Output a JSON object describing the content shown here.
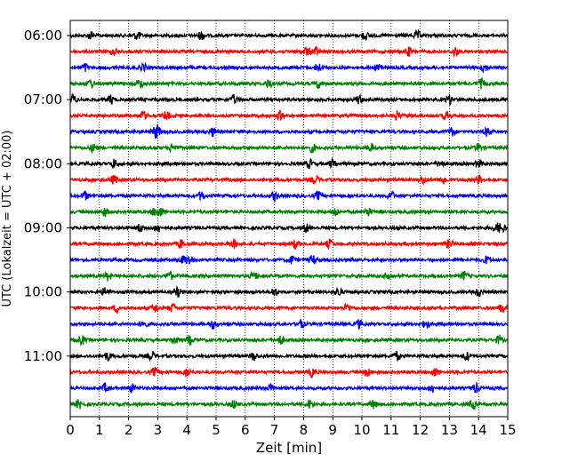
{
  "chart_data": {
    "type": "line",
    "xlabel": "Zeit  [min]",
    "ylabel": "UTC (Lokalzeit = UTC + 02:00)",
    "xlim": [
      0,
      15
    ],
    "x_ticks": [
      "0",
      "1",
      "2",
      "3",
      "4",
      "5",
      "6",
      "7",
      "8",
      "9",
      "10",
      "11",
      "12",
      "13",
      "14",
      "15"
    ],
    "y_ticks": [
      "06:00",
      "07:00",
      "08:00",
      "09:00",
      "10:00",
      "11:00"
    ],
    "grid": "vertical dotted lines at each minute",
    "trace_interval_min": 15,
    "trace_start": "06:00",
    "trace_count": 24,
    "trace_colors": [
      "#000000",
      "#ff0000",
      "#0000ff",
      "#008000"
    ],
    "traces": [
      {
        "start": "06:00",
        "events": [
          0.7,
          2.3,
          4.5,
          10.1,
          11.9
        ]
      },
      {
        "start": "06:15",
        "events": [
          1.5,
          8.1,
          8.4,
          11.6,
          13.2
        ]
      },
      {
        "start": "06:30",
        "events": [
          0.5,
          2.5,
          8.5,
          10.6,
          14.2
        ]
      },
      {
        "start": "06:45",
        "events": [
          0.7,
          2.4,
          6.8,
          8.5,
          14.1
        ]
      },
      {
        "start": "07:00",
        "events": [
          0.1,
          1.4,
          5.6,
          9.9,
          13.0
        ]
      },
      {
        "start": "07:15",
        "events": [
          2.5,
          3.3,
          7.2,
          11.2,
          12.9
        ]
      },
      {
        "start": "07:30",
        "events": [
          2.9,
          3.0,
          4.9,
          13.1,
          14.3
        ]
      },
      {
        "start": "07:45",
        "events": [
          0.8,
          3.5,
          8.3,
          10.3,
          14.0
        ]
      },
      {
        "start": "08:00",
        "events": [
          1.5,
          8.2,
          9.0,
          12.7,
          14.0
        ]
      },
      {
        "start": "08:15",
        "events": [
          1.5,
          8.4,
          12.1,
          12.8,
          14.0
        ]
      },
      {
        "start": "08:30",
        "events": [
          0.5,
          4.5,
          7.0,
          8.5,
          11.0
        ]
      },
      {
        "start": "08:45",
        "events": [
          1.2,
          2.9,
          3.1,
          9.1,
          10.2
        ]
      },
      {
        "start": "09:00",
        "events": [
          2.4,
          3.0,
          8.1,
          14.6,
          14.8
        ]
      },
      {
        "start": "09:15",
        "events": [
          3.8,
          5.6,
          7.7,
          8.9,
          13.0
        ]
      },
      {
        "start": "09:30",
        "events": [
          3.9,
          4.1,
          7.6,
          8.3,
          14.3
        ]
      },
      {
        "start": "09:45",
        "events": [
          1.3,
          3.4,
          6.3,
          10.9,
          13.5
        ]
      },
      {
        "start": "10:00",
        "events": [
          1.2,
          3.7,
          7.0,
          9.2,
          14.0
        ]
      },
      {
        "start": "10:15",
        "events": [
          1.6,
          2.9,
          3.5,
          9.5,
          14.8
        ]
      },
      {
        "start": "10:30",
        "events": [
          2.5,
          4.9,
          7.9,
          9.9,
          12.2
        ]
      },
      {
        "start": "10:45",
        "events": [
          0.4,
          3.6,
          4.1,
          7.2,
          14.7
        ]
      },
      {
        "start": "11:00",
        "events": [
          1.3,
          2.8,
          6.3,
          11.2,
          13.6
        ]
      },
      {
        "start": "11:15",
        "events": [
          2.9,
          4.0,
          8.3,
          10.2,
          12.5
        ]
      },
      {
        "start": "11:30",
        "events": [
          1.2,
          2.1,
          6.9,
          12.4,
          13.9
        ]
      },
      {
        "start": "11:45",
        "events": [
          0.3,
          5.6,
          8.2,
          10.4,
          13.8
        ]
      }
    ]
  }
}
